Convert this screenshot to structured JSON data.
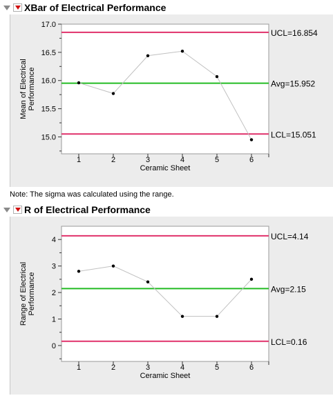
{
  "sections": [
    {
      "title": "XBar of Electrical Performance"
    },
    {
      "title": "R of Electrical Performance"
    }
  ],
  "note": "Note: The sigma was calculated using the range.",
  "colors": {
    "limit_line": "#e0306a",
    "center_line": "#22bb22",
    "data_line": "#c0c0c0",
    "point": "#000000",
    "menu_triangle": "#d01010"
  },
  "icons": {
    "disclosure": "disclosure-triangle-icon",
    "menu": "red-menu-triangle-icon"
  },
  "chart_data": [
    {
      "type": "line",
      "xlabel": "Ceramic Sheet",
      "ylabel": [
        "Mean of Electrical",
        "Performance"
      ],
      "x": [
        1,
        2,
        3,
        4,
        5,
        6
      ],
      "values": [
        15.96,
        15.77,
        16.44,
        16.52,
        16.07,
        14.95
      ],
      "xlim": [
        0.5,
        6.5
      ],
      "ylim": [
        14.7,
        17.0
      ],
      "yticks": [
        "15.0",
        "15.5",
        "16.0",
        "16.5",
        "17.0"
      ],
      "ytick_values": [
        15.0,
        15.5,
        16.0,
        16.5,
        17.0
      ],
      "xticks": [
        "1",
        "2",
        "3",
        "4",
        "5",
        "6"
      ],
      "limits": [
        {
          "kind": "ucl",
          "value": 16.854,
          "label": "UCL=16.854"
        },
        {
          "kind": "avg",
          "value": 15.952,
          "label": "Avg=15.952"
        },
        {
          "kind": "lcl",
          "value": 15.051,
          "label": "LCL=15.051"
        }
      ]
    },
    {
      "type": "line",
      "xlabel": "Ceramic Sheet",
      "ylabel": [
        "Range of Electrical",
        "Performance"
      ],
      "x": [
        1,
        2,
        3,
        4,
        5,
        6
      ],
      "values": [
        2.8,
        3.0,
        2.4,
        1.1,
        1.1,
        2.5
      ],
      "xlim": [
        0.5,
        6.5
      ],
      "ylim": [
        -0.6,
        4.5
      ],
      "yticks": [
        "0",
        "1",
        "2",
        "3",
        "4"
      ],
      "ytick_values": [
        0,
        1,
        2,
        3,
        4
      ],
      "xticks": [
        "1",
        "2",
        "3",
        "4",
        "5",
        "6"
      ],
      "limits": [
        {
          "kind": "ucl",
          "value": 4.14,
          "label": "UCL=4.14"
        },
        {
          "kind": "avg",
          "value": 2.15,
          "label": "Avg=2.15"
        },
        {
          "kind": "lcl",
          "value": 0.16,
          "label": "LCL=0.16"
        }
      ]
    }
  ]
}
